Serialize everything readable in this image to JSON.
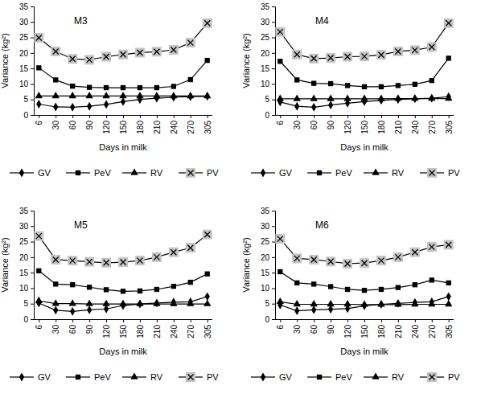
{
  "chart_data": [
    {
      "type": "line",
      "title": "M3",
      "x_label": "Days in milk",
      "y_label": "Variance (kg²)",
      "categories": [
        6,
        30,
        60,
        90,
        120,
        150,
        180,
        210,
        240,
        270,
        305
      ],
      "ylim": [
        0,
        35
      ],
      "yticks": [
        0,
        5,
        10,
        15,
        20,
        25,
        30,
        35
      ],
      "legend": "bottom",
      "series": [
        {
          "name": "GV",
          "color": "#000000",
          "marker": "diamond",
          "values": [
            3.5,
            2.6,
            2.5,
            2.8,
            3.4,
            4.3,
            5.0,
            5.4,
            5.7,
            5.9,
            6.0
          ]
        },
        {
          "name": "PeV",
          "color": "#000000",
          "marker": "square",
          "values": [
            15.2,
            11.3,
            9.3,
            8.9,
            8.8,
            8.8,
            8.8,
            8.8,
            9.2,
            11.4,
            17.6
          ]
        },
        {
          "name": "RV",
          "color": "#000000",
          "marker": "triangle",
          "values": [
            6.1,
            6.1,
            6.1,
            6.1,
            6.1,
            6.1,
            6.1,
            6.1,
            6.1,
            6.1,
            6.1
          ]
        },
        {
          "name": "PV",
          "color": "#000000",
          "marker": "x-square",
          "values": [
            24.9,
            20.5,
            18.1,
            17.8,
            18.8,
            19.5,
            20.1,
            20.4,
            21.0,
            23.3,
            29.6
          ]
        }
      ]
    },
    {
      "type": "line",
      "title": "M4",
      "x_label": "Days in milk",
      "y_label": "Variance (kg²)",
      "categories": [
        6,
        30,
        60,
        90,
        120,
        150,
        180,
        210,
        240,
        270,
        305
      ],
      "ylim": [
        0,
        35
      ],
      "yticks": [
        0,
        5,
        10,
        15,
        20,
        25,
        30,
        35
      ],
      "legend": "bottom",
      "series": [
        {
          "name": "GV",
          "color": "#000000",
          "marker": "diamond",
          "values": [
            4.2,
            2.8,
            2.5,
            3.2,
            3.8,
            4.3,
            4.7,
            5.0,
            5.2,
            5.4,
            5.9
          ]
        },
        {
          "name": "PeV",
          "color": "#000000",
          "marker": "square",
          "values": [
            17.3,
            11.3,
            10.2,
            10.1,
            9.5,
            9.1,
            9.1,
            9.5,
            9.9,
            11.1,
            18.3
          ]
        },
        {
          "name": "RV",
          "color": "#000000",
          "marker": "triangle",
          "values": [
            5.2,
            5.2,
            5.2,
            5.2,
            5.2,
            5.2,
            5.2,
            5.3,
            5.3,
            5.3,
            5.3
          ]
        },
        {
          "name": "PV",
          "color": "#000000",
          "marker": "x-square",
          "values": [
            26.8,
            19.5,
            18.2,
            18.4,
            18.8,
            18.9,
            19.4,
            20.5,
            20.9,
            21.9,
            29.6
          ]
        }
      ]
    },
    {
      "type": "line",
      "title": "M5",
      "x_label": "Days in milk",
      "y_label": "Variance (kg²)",
      "categories": [
        6,
        30,
        60,
        90,
        120,
        150,
        180,
        210,
        240,
        270,
        305
      ],
      "ylim": [
        0,
        35
      ],
      "yticks": [
        0,
        5,
        10,
        15,
        20,
        25,
        30,
        35
      ],
      "legend": "bottom",
      "series": [
        {
          "name": "GV",
          "color": "#000000",
          "marker": "diamond",
          "values": [
            5.2,
            2.9,
            2.5,
            3.0,
            3.3,
            4.4,
            4.9,
            5.2,
            5.5,
            5.6,
            7.3
          ]
        },
        {
          "name": "PeV",
          "color": "#000000",
          "marker": "square",
          "values": [
            15.6,
            11.3,
            11.1,
            10.3,
            9.5,
            9.0,
            9.1,
            9.6,
            10.6,
            11.9,
            14.6
          ]
        },
        {
          "name": "RV",
          "color": "#000000",
          "marker": "triangle",
          "values": [
            5.9,
            5.0,
            5.0,
            4.9,
            4.9,
            4.9,
            4.9,
            4.9,
            4.9,
            4.9,
            4.9
          ]
        },
        {
          "name": "PV",
          "color": "#000000",
          "marker": "x-square",
          "values": [
            26.8,
            19.2,
            18.9,
            18.5,
            18.2,
            18.4,
            18.9,
            20.0,
            21.6,
            23.0,
            27.3
          ]
        }
      ]
    },
    {
      "type": "line",
      "title": "M6",
      "x_label": "Days in milk",
      "y_label": "Variance (kg²)",
      "categories": [
        6,
        30,
        60,
        90,
        120,
        150,
        180,
        210,
        240,
        270,
        305
      ],
      "ylim": [
        0,
        35
      ],
      "yticks": [
        0,
        5,
        10,
        15,
        20,
        25,
        30,
        35
      ],
      "legend": "bottom",
      "series": [
        {
          "name": "GV",
          "color": "#000000",
          "marker": "diamond",
          "values": [
            4.6,
            2.7,
            3.0,
            3.2,
            3.4,
            4.3,
            4.8,
            5.1,
            5.4,
            5.6,
            7.3
          ]
        },
        {
          "name": "PeV",
          "color": "#000000",
          "marker": "square",
          "values": [
            15.3,
            11.7,
            11.3,
            10.5,
            9.6,
            9.3,
            9.6,
            10.2,
            11.1,
            12.6,
            11.7
          ]
        },
        {
          "name": "RV",
          "color": "#000000",
          "marker": "triangle",
          "values": [
            5.6,
            4.8,
            4.8,
            4.8,
            4.8,
            4.7,
            4.7,
            4.7,
            4.8,
            4.8,
            4.8
          ]
        },
        {
          "name": "PV",
          "color": "#000000",
          "marker": "x-square",
          "values": [
            25.9,
            19.6,
            19.2,
            18.6,
            17.9,
            18.1,
            18.9,
            20.0,
            21.6,
            23.3,
            24.0
          ]
        }
      ]
    }
  ]
}
